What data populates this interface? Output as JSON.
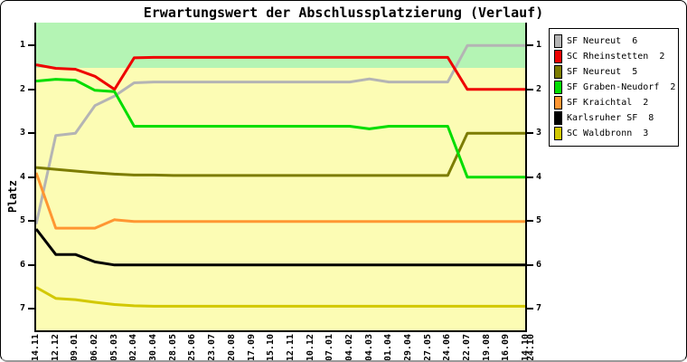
{
  "title": "Erwartungswert der Abschlussplatzierung (Verlauf)",
  "colors": {
    "plot_bg": "#fcfcb4",
    "band": "#b4f4b4",
    "axis": "#000000",
    "page_bg": "#ffffff"
  },
  "chart_data": {
    "type": "line",
    "title": "Erwartungswert der Abschlussplatzierung (Verlauf)",
    "ylabel": "Platz",
    "y_axis_inverted": true,
    "ylim": [
      0.5,
      7.5
    ],
    "yticks": [
      1,
      2,
      3,
      4,
      5,
      6,
      7
    ],
    "grid": false,
    "legend_position": "top-right",
    "highlight_band": {
      "rank_from": 0.5,
      "rank_to": 1.5,
      "color": "#b4f4b4"
    },
    "x_labels": [
      "14.11",
      "12.12",
      "09.01",
      "06.02",
      "05.03",
      "02.04",
      "30.04",
      "28.05",
      "25.06",
      "23.07",
      "20.08",
      "17.09",
      "15.10",
      "12.11",
      "10.12",
      "07.01",
      "04.02",
      "04.03",
      "01.04",
      "29.04",
      "27.05",
      "24.06",
      "22.07",
      "19.08",
      "16.09",
      "14.10"
    ],
    "x_extra_overlapping_label": "24.10",
    "series": [
      {
        "name": "SF Neureut  6",
        "color": "#b4b4b4",
        "values": [
          5.07,
          3.05,
          3.0,
          2.37,
          2.15,
          1.85,
          1.83,
          1.83,
          1.83,
          1.83,
          1.83,
          1.83,
          1.83,
          1.83,
          1.83,
          1.83,
          1.83,
          1.76,
          1.83,
          1.83,
          1.83,
          1.83,
          1.0,
          1.0,
          1.0,
          1.0
        ]
      },
      {
        "name": "SC Rheinstetten  2",
        "color": "#ee0000",
        "values": [
          1.44,
          1.52,
          1.54,
          1.7,
          2.0,
          1.28,
          1.27,
          1.27,
          1.27,
          1.27,
          1.27,
          1.27,
          1.27,
          1.27,
          1.27,
          1.27,
          1.27,
          1.27,
          1.27,
          1.27,
          1.27,
          1.27,
          2.0,
          2.0,
          2.0,
          2.0
        ]
      },
      {
        "name": "SF Neureut  5",
        "color": "#7c7c00",
        "values": [
          3.78,
          3.82,
          3.86,
          3.9,
          3.93,
          3.95,
          3.95,
          3.96,
          3.96,
          3.96,
          3.96,
          3.96,
          3.96,
          3.96,
          3.96,
          3.96,
          3.96,
          3.96,
          3.96,
          3.96,
          3.96,
          3.96,
          3.0,
          3.0,
          3.0,
          3.0
        ]
      },
      {
        "name": "SF Graben-Neudorf  2",
        "color": "#00dd00",
        "values": [
          1.81,
          1.77,
          1.79,
          2.02,
          2.05,
          2.84,
          2.84,
          2.84,
          2.84,
          2.84,
          2.84,
          2.84,
          2.84,
          2.84,
          2.84,
          2.84,
          2.84,
          2.9,
          2.84,
          2.84,
          2.84,
          2.84,
          4.0,
          4.0,
          4.0,
          4.0
        ]
      },
      {
        "name": "SF Kraichtal  2",
        "color": "#ff9632",
        "values": [
          3.9,
          5.16,
          5.16,
          5.16,
          4.97,
          5.01,
          5.01,
          5.01,
          5.01,
          5.01,
          5.01,
          5.01,
          5.01,
          5.01,
          5.01,
          5.01,
          5.01,
          5.01,
          5.01,
          5.01,
          5.01,
          5.01,
          5.01,
          5.01,
          5.01,
          5.01
        ]
      },
      {
        "name": "Karlsruher SF  8",
        "color": "#000000",
        "values": [
          5.18,
          5.76,
          5.76,
          5.93,
          6.0,
          6.0,
          6.0,
          6.0,
          6.0,
          6.0,
          6.0,
          6.0,
          6.0,
          6.0,
          6.0,
          6.0,
          6.0,
          6.0,
          6.0,
          6.0,
          6.0,
          6.0,
          6.0,
          6.0,
          6.0,
          6.0
        ]
      },
      {
        "name": "SC Waldbronn  3",
        "color": "#d2c800",
        "values": [
          6.51,
          6.76,
          6.79,
          6.85,
          6.9,
          6.93,
          6.94,
          6.94,
          6.94,
          6.94,
          6.94,
          6.94,
          6.94,
          6.94,
          6.94,
          6.94,
          6.94,
          6.94,
          6.94,
          6.94,
          6.94,
          6.94,
          6.94,
          6.94,
          6.94,
          6.94
        ]
      }
    ]
  }
}
